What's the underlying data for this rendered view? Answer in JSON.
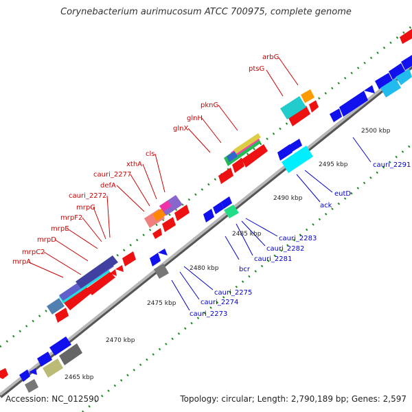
{
  "title": "Corynebacterium aurimucosum ATCC 700975, complete genome",
  "footer": {
    "accession": "Accession: NC_012590",
    "summary": "Topology: circular; Length: 2,790,189 bp; Genes: 2,597"
  },
  "colors": {
    "forward_label": "#cc0000",
    "reverse_label": "#0000cc",
    "backbone": "#8a8a8a",
    "tick": "#1a8a1a",
    "scale_text": "#222222"
  },
  "scale_labels": [
    "2465 kbp",
    "2470 kbp",
    "2475 kbp",
    "2480 kbp",
    "2485 kbp",
    "2490 kbp",
    "2495 kbp",
    "2500 kbp"
  ],
  "forward_genes": [
    "mrpA",
    "mrpC2",
    "mrpD",
    "mrpE",
    "mrpF2",
    "mrpG",
    "cauri_2272",
    "defA",
    "cauri_2277",
    "xthA",
    "cls",
    "glnX",
    "glnH",
    "pknG",
    "ptsG",
    "arbG"
  ],
  "reverse_genes": [
    "cauri_2273",
    "cauri_2274",
    "cauri_2275",
    "bcr",
    "cauri_2281",
    "cauri_2282",
    "cauri_2283",
    "ack",
    "eutD",
    "cauri_2291"
  ]
}
